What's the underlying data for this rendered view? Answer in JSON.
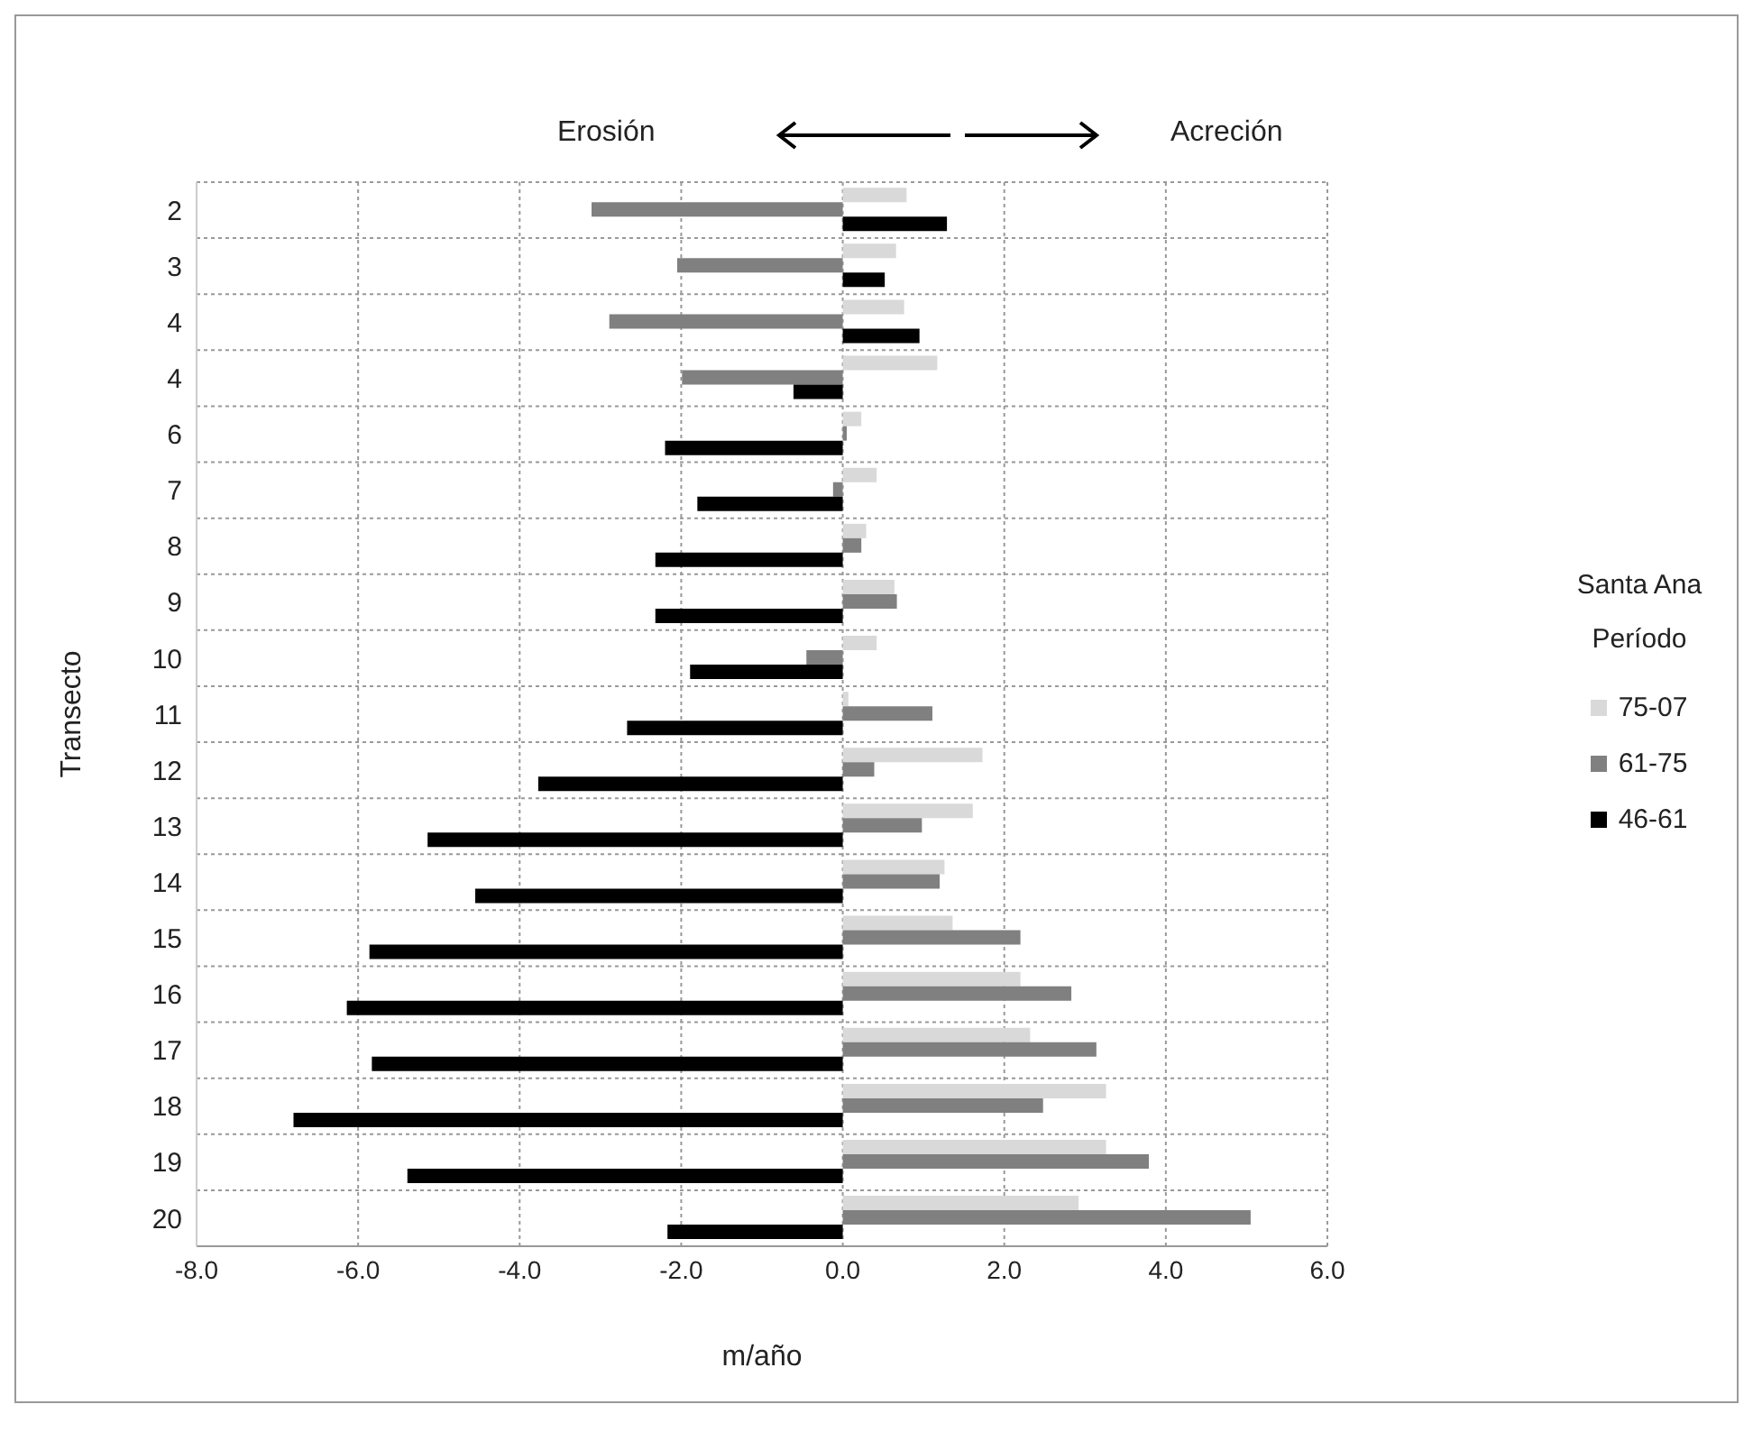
{
  "chart_data": {
    "type": "bar",
    "orientation": "horizontal",
    "xlabel": "m/año",
    "ylabel": "Transecto",
    "legend_title": "Santa Ana Período",
    "annotations": [
      "Erosión",
      "Acreción"
    ],
    "categories": [
      "2",
      "3",
      "4",
      "4",
      "6",
      "7",
      "8",
      "9",
      "10",
      "11",
      "12",
      "13",
      "14",
      "15",
      "16",
      "17",
      "18",
      "19",
      "20"
    ],
    "series": [
      {
        "name": "75-07",
        "color": "#d9d9d9",
        "values": [
          0.79,
          0.66,
          0.76,
          1.17,
          0.23,
          0.42,
          0.29,
          0.64,
          0.42,
          0.07,
          1.73,
          1.61,
          1.26,
          1.36,
          2.2,
          2.32,
          3.26,
          3.26,
          2.92
        ]
      },
      {
        "name": "61-75",
        "color": "#808080",
        "values": [
          -3.11,
          -2.05,
          -2.89,
          -1.99,
          0.05,
          -0.12,
          0.23,
          0.67,
          -0.45,
          1.11,
          0.39,
          0.98,
          1.2,
          2.2,
          2.83,
          3.14,
          2.48,
          3.79,
          5.05
        ]
      },
      {
        "name": "46-61",
        "color": "#000000",
        "values": [
          1.29,
          0.52,
          0.95,
          -0.61,
          -2.2,
          -1.8,
          -2.32,
          -2.32,
          -1.89,
          -2.67,
          -3.77,
          -5.14,
          -4.55,
          -5.86,
          -6.14,
          -5.83,
          -6.8,
          -5.39,
          -2.17
        ]
      }
    ],
    "xlim": [
      -8,
      6
    ],
    "xticks": [
      {
        "value": -8,
        "label": "-8.0"
      },
      {
        "value": -6,
        "label": "-6.0"
      },
      {
        "value": -4,
        "label": "-4.0"
      },
      {
        "value": -2,
        "label": "-2.0"
      },
      {
        "value": 0,
        "label": "0.0"
      },
      {
        "value": 2,
        "label": "2.0"
      },
      {
        "value": 4,
        "label": "4.0"
      },
      {
        "value": 6,
        "label": "6.0"
      }
    ],
    "grid": true,
    "legend": "right"
  }
}
